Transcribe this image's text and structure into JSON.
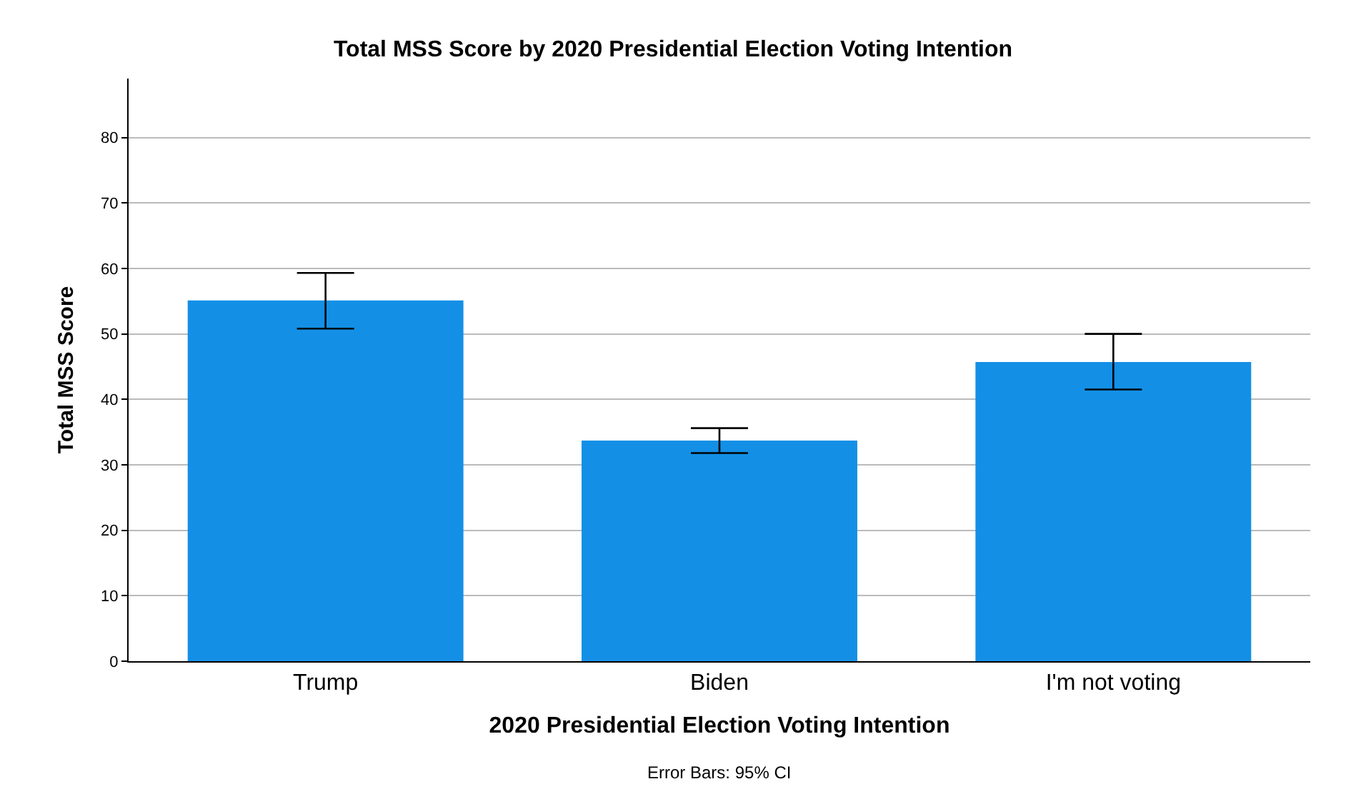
{
  "chart_data": {
    "type": "bar",
    "title": "Total MSS Score by 2020 Presidential Election Voting Intention",
    "xlabel": "2020 Presidential Election Voting Intention",
    "ylabel": "Total MSS Score",
    "categories": [
      "Trump",
      "Biden",
      "I'm not voting"
    ],
    "values": [
      55.1,
      33.7,
      45.7
    ],
    "color": "#1390e6",
    "errors": [
      [
        50.8,
        59.3
      ],
      [
        31.8,
        35.6
      ],
      [
        41.5,
        50.0
      ]
    ],
    "ylim": [
      0,
      89
    ],
    "yticks": [
      0,
      10,
      20,
      30,
      40,
      50,
      60,
      70,
      80
    ],
    "grid": "y",
    "annotations": [
      "Error Bars: 95% CI"
    ]
  }
}
